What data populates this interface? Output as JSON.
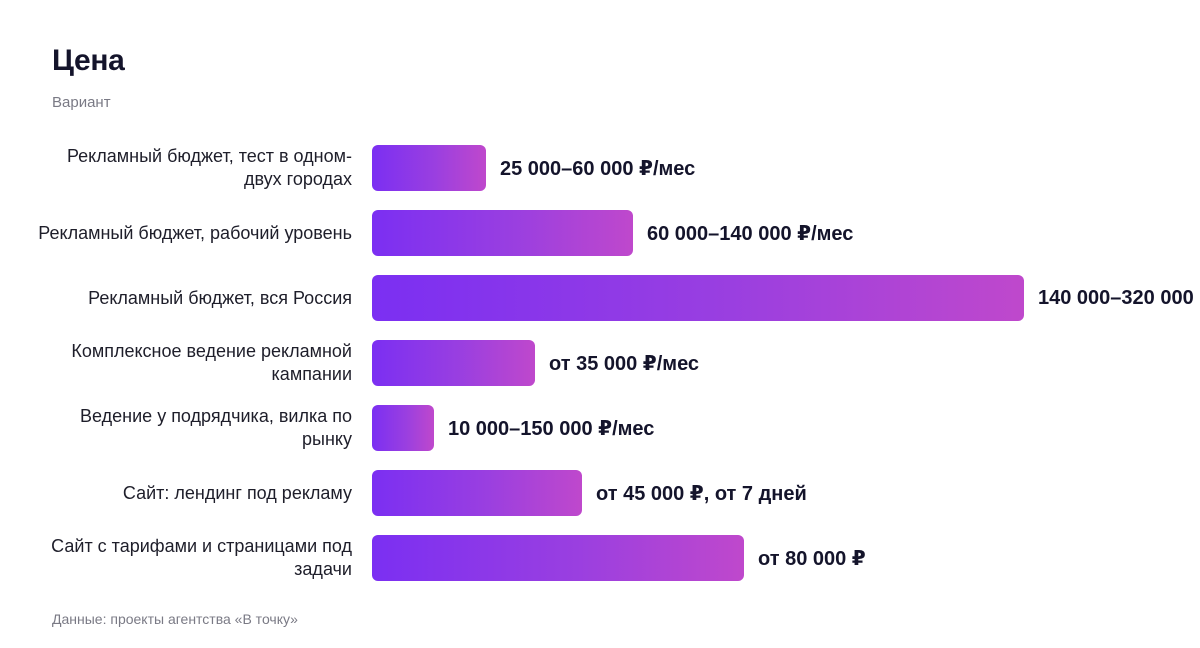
{
  "header": {
    "title": "Цена",
    "subtitle": "Вариант"
  },
  "footnote": "Данные: проекты агентства «В точку»",
  "colors": {
    "bar_start": "#7b2ff2",
    "bar_end": "#bf48cc",
    "text": "#14142b",
    "muted": "#7a7a85"
  },
  "chart_data": {
    "type": "bar",
    "orientation": "horizontal",
    "title": "Цена",
    "subtitle": "Вариант",
    "xlim": [
      0,
      200000
    ],
    "grid": false,
    "categories": [
      "Рекламный бюджет, тест в одном-двух городах",
      "Рекламный бюджет, рабочий уровень",
      "Рекламный бюджет, вся Россия",
      "Комплексное ведение рекламной кампании",
      "Ведение у подрядчика, вилка по рынку",
      "Сайт: лендинг под рекламу",
      "Сайт с тарифами и страницами под задачи"
    ],
    "values": [
      35000,
      80000,
      200000,
      50000,
      19000,
      64500,
      114000
    ],
    "value_labels": [
      "25 000–60 000 ₽/мес",
      "60 000–140 000 ₽/мес",
      "140 000–320 000",
      "от 35 000 ₽/мес",
      "10 000–150 000 ₽/мес",
      "от 45 000 ₽, от 7 дней",
      "от 80 000 ₽"
    ]
  }
}
